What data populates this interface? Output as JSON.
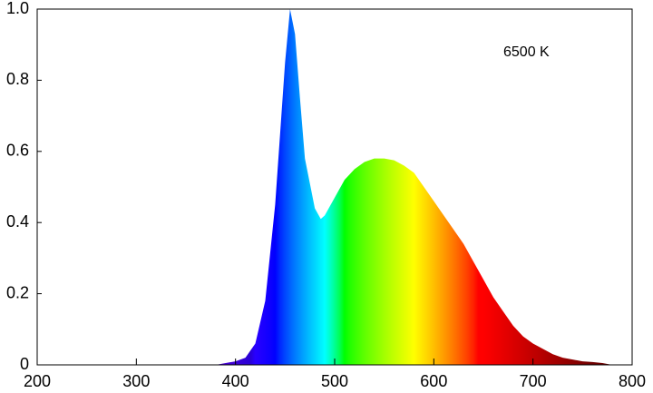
{
  "chart_data": {
    "type": "area",
    "annotation": "6500 K",
    "x": [
      380,
      400,
      410,
      420,
      430,
      440,
      450,
      455,
      460,
      465,
      470,
      480,
      486,
      490,
      500,
      510,
      520,
      530,
      540,
      550,
      560,
      570,
      580,
      590,
      600,
      610,
      620,
      630,
      640,
      650,
      660,
      670,
      680,
      690,
      700,
      710,
      720,
      730,
      740,
      750,
      760,
      770,
      780
    ],
    "values": [
      0.0,
      0.01,
      0.02,
      0.06,
      0.18,
      0.45,
      0.85,
      1.0,
      0.93,
      0.75,
      0.58,
      0.44,
      0.41,
      0.42,
      0.47,
      0.52,
      0.55,
      0.57,
      0.58,
      0.58,
      0.575,
      0.56,
      0.54,
      0.5,
      0.46,
      0.42,
      0.38,
      0.34,
      0.29,
      0.24,
      0.19,
      0.15,
      0.11,
      0.08,
      0.06,
      0.045,
      0.03,
      0.02,
      0.015,
      0.01,
      0.008,
      0.005,
      0.0
    ],
    "xlim": [
      200,
      800
    ],
    "xticks": [
      200,
      300,
      400,
      500,
      600,
      700,
      800
    ],
    "ylim": [
      0,
      1
    ],
    "yticks": [
      {
        "value": 0,
        "label": "0"
      },
      {
        "value": 0.2,
        "label": "0.2"
      },
      {
        "value": 0.4,
        "label": "0.4"
      },
      {
        "value": 0.6,
        "label": "0.6"
      },
      {
        "value": 0.8,
        "label": "0.8"
      },
      {
        "value": 1,
        "label": "1.0"
      }
    ],
    "fill": "spectrum"
  }
}
